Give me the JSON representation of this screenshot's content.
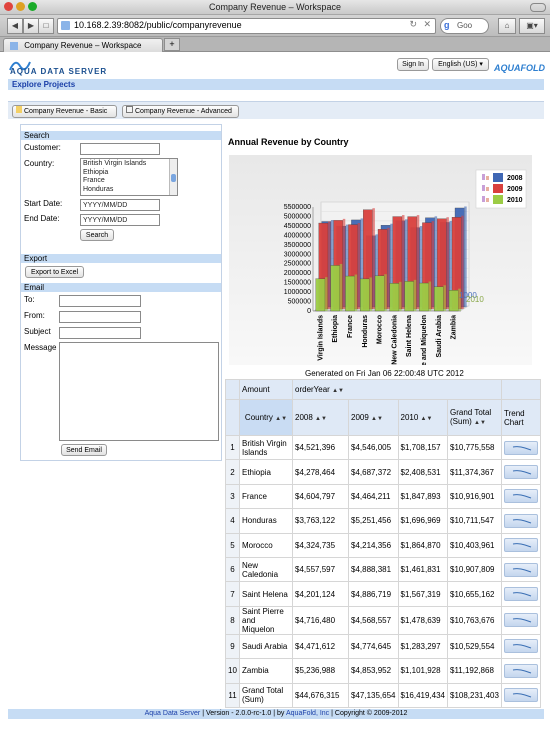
{
  "window": {
    "title": "Company Revenue – Workspace"
  },
  "browser": {
    "url": "10.168.2.39:8082/public/companyrevenue",
    "search_placeholder": "Goo",
    "tab_label": "Company Revenue – Workspace"
  },
  "header": {
    "brand": "AQUA DATA SERVER",
    "sign_in": "Sign In",
    "language": "English (US)",
    "logo_text": "AQUAFOLD",
    "explore": "Explore Projects"
  },
  "tabs": [
    {
      "label": "Company Revenue - Basic"
    },
    {
      "label": "Company Revenue - Advanced"
    }
  ],
  "search": {
    "heading": "Search",
    "customer_label": "Customer:",
    "country_label": "Country:",
    "country_options": [
      "British Virgin Islands",
      "Ethiopia",
      "France",
      "Honduras"
    ],
    "start_label": "Start Date:",
    "start_value": "YYYY/MM/DD",
    "end_label": "End Date:",
    "end_value": "YYYY/MM/DD",
    "search_button": "Search"
  },
  "export": {
    "heading": "Export",
    "button": "Export to Excel"
  },
  "email": {
    "heading": "Email",
    "to": "To:",
    "from": "From:",
    "subject": "Subject",
    "message": "Message",
    "send": "Send Email"
  },
  "report": {
    "title": "Annual Revenue by Country",
    "generated": "Generated on Fri Jan 06 22:00:48 UTC 2012"
  },
  "chart_data": {
    "type": "bar",
    "title": "",
    "categories": [
      "Virgin Islands",
      "Ethiopia",
      "France",
      "Honduras",
      "Morocco",
      "New Caledonia",
      "Saint Helena",
      "re and Miquelon",
      "Saudi Arabia",
      "Zambia"
    ],
    "series": [
      {
        "name": "2008",
        "color": "#3f67b4",
        "values": [
          4521396,
          4278464,
          4604797,
          3763122,
          4324735,
          4557597,
          4201124,
          4716480,
          4471612,
          5236988
        ]
      },
      {
        "name": "2009",
        "color": "#d9403d",
        "values": [
          4546005,
          4687372,
          4464211,
          5251456,
          4214356,
          4888381,
          4886719,
          4568557,
          4774645,
          4853952
        ]
      },
      {
        "name": "2010",
        "color": "#9ccc45",
        "values": [
          1708157,
          2408531,
          1847893,
          1696969,
          1864870,
          1461831,
          1567319,
          1478639,
          1283297,
          1101928
        ]
      }
    ],
    "yticks": [
      "5500000",
      "5000000",
      "4500000",
      "4000000",
      "3500000",
      "3000000",
      "2500000",
      "2000000",
      "1500000",
      "1000000",
      "500000",
      "0"
    ],
    "ylim": [
      0,
      5500000
    ],
    "legend": "top-right",
    "end_labels": [
      "1000",
      "2010"
    ]
  },
  "table": {
    "measure_label": "Amount",
    "pivot_label": "orderYear",
    "columns": [
      "Country",
      "2008",
      "2009",
      "2010",
      "Grand Total (Sum)",
      "Trend Chart"
    ],
    "rows": [
      [
        "1",
        "British Virgin Islands",
        "$4,521,396",
        "$4,546,005",
        "$1,708,157",
        "$10,775,558"
      ],
      [
        "2",
        "Ethiopia",
        "$4,278,464",
        "$4,687,372",
        "$2,408,531",
        "$11,374,367"
      ],
      [
        "3",
        "France",
        "$4,604,797",
        "$4,464,211",
        "$1,847,893",
        "$10,916,901"
      ],
      [
        "4",
        "Honduras",
        "$3,763,122",
        "$5,251,456",
        "$1,696,969",
        "$10,711,547"
      ],
      [
        "5",
        "Morocco",
        "$4,324,735",
        "$4,214,356",
        "$1,864,870",
        "$10,403,961"
      ],
      [
        "6",
        "New Caledonia",
        "$4,557,597",
        "$4,888,381",
        "$1,461,831",
        "$10,907,809"
      ],
      [
        "7",
        "Saint Helena",
        "$4,201,124",
        "$4,886,719",
        "$1,567,319",
        "$10,655,162"
      ],
      [
        "8",
        "Saint Pierre and Miquelon",
        "$4,716,480",
        "$4,568,557",
        "$1,478,639",
        "$10,763,676"
      ],
      [
        "9",
        "Saudi Arabia",
        "$4,471,612",
        "$4,774,645",
        "$1,283,297",
        "$10,529,554"
      ],
      [
        "10",
        "Zambia",
        "$5,236,988",
        "$4,853,952",
        "$1,101,928",
        "$11,192,868"
      ],
      [
        "11",
        "Grand Total (Sum)",
        "$44,676,315",
        "$47,135,654",
        "$16,419,434",
        "$108,231,403"
      ]
    ]
  },
  "footer": {
    "link1": "Aqua Data Server",
    "version": " | Version - 2.0.0-rc-1.0 | by ",
    "link2": "AquaFold, Inc",
    "copyright": " | Copyright © 2009-2012"
  }
}
